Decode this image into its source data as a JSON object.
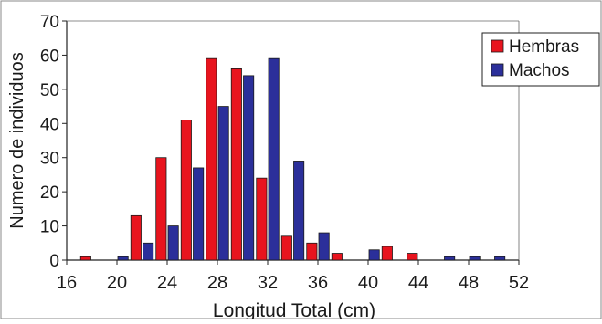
{
  "chart_data": {
    "type": "bar",
    "xlabel": "Longitud Total (cm)",
    "ylabel": "Numero de individuos",
    "ylim": [
      0,
      70
    ],
    "yticks": [
      0,
      10,
      20,
      30,
      40,
      50,
      60,
      70
    ],
    "xlim": [
      16,
      52
    ],
    "xticks": [
      16,
      20,
      24,
      28,
      32,
      36,
      40,
      44,
      48,
      52
    ],
    "categories": [
      18,
      20,
      22,
      24,
      26,
      28,
      30,
      32,
      34,
      36,
      38,
      40,
      42,
      44,
      46,
      48,
      50
    ],
    "series": [
      {
        "name": "Hembras",
        "color": "#e8141e",
        "values": [
          1,
          0,
          13,
          30,
          41,
          59,
          56,
          24,
          7,
          5,
          2,
          0,
          4,
          2,
          0,
          0,
          0
        ]
      },
      {
        "name": "Machos",
        "color": "#2b2f9a",
        "values": [
          0,
          1,
          5,
          10,
          27,
          45,
          54,
          59,
          29,
          8,
          0,
          3,
          0,
          0,
          1,
          1,
          1
        ]
      }
    ],
    "legend_position": "top-right",
    "grid": false
  }
}
